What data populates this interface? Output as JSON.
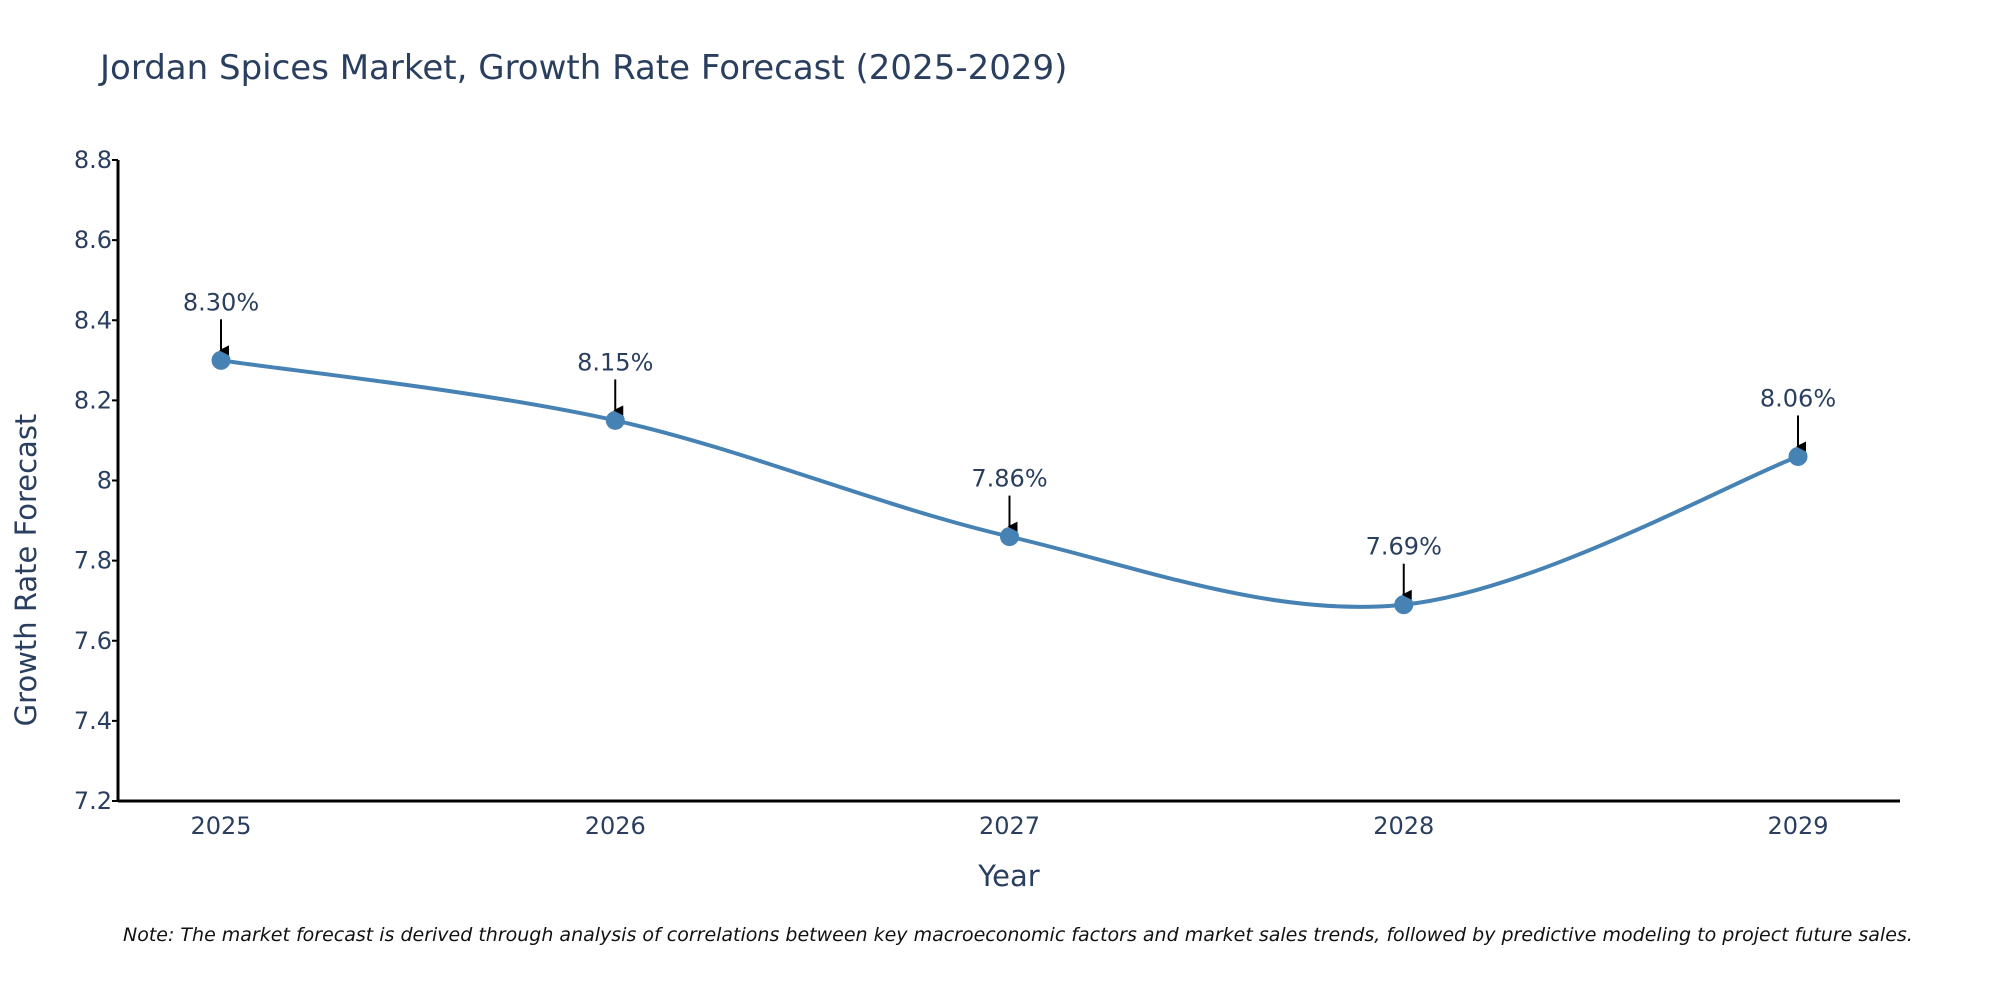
{
  "chart_data": {
    "type": "line",
    "title": "Jordan Spices Market, Growth Rate Forecast (2025-2029)",
    "xlabel": "Year",
    "ylabel": "Growth Rate Forecast",
    "categories": [
      "2025",
      "2026",
      "2027",
      "2028",
      "2029"
    ],
    "series": [
      {
        "name": "Growth Rate Forecast",
        "values": [
          8.3,
          8.15,
          7.86,
          7.69,
          8.06
        ],
        "labels": [
          "8.30%",
          "8.15%",
          "7.86%",
          "7.69%",
          "8.06%"
        ],
        "color": "#4682b4"
      }
    ],
    "ylim": [
      7.2,
      8.8
    ],
    "yticks": [
      7.2,
      7.4,
      7.6,
      7.8,
      8.0,
      8.2,
      8.4,
      8.6,
      8.8
    ],
    "ytick_labels": [
      "7.2",
      "7.4",
      "7.6",
      "7.8",
      "8",
      "8.2",
      "8.4",
      "8.6",
      "8.8"
    ],
    "grid": false,
    "line_shape": "spline",
    "markers": true,
    "annotation_arrows": true
  },
  "note": "Note: The market forecast is derived through analysis of correlations between key macroeconomic factors and market sales trends, followed by predictive modeling to project future sales."
}
